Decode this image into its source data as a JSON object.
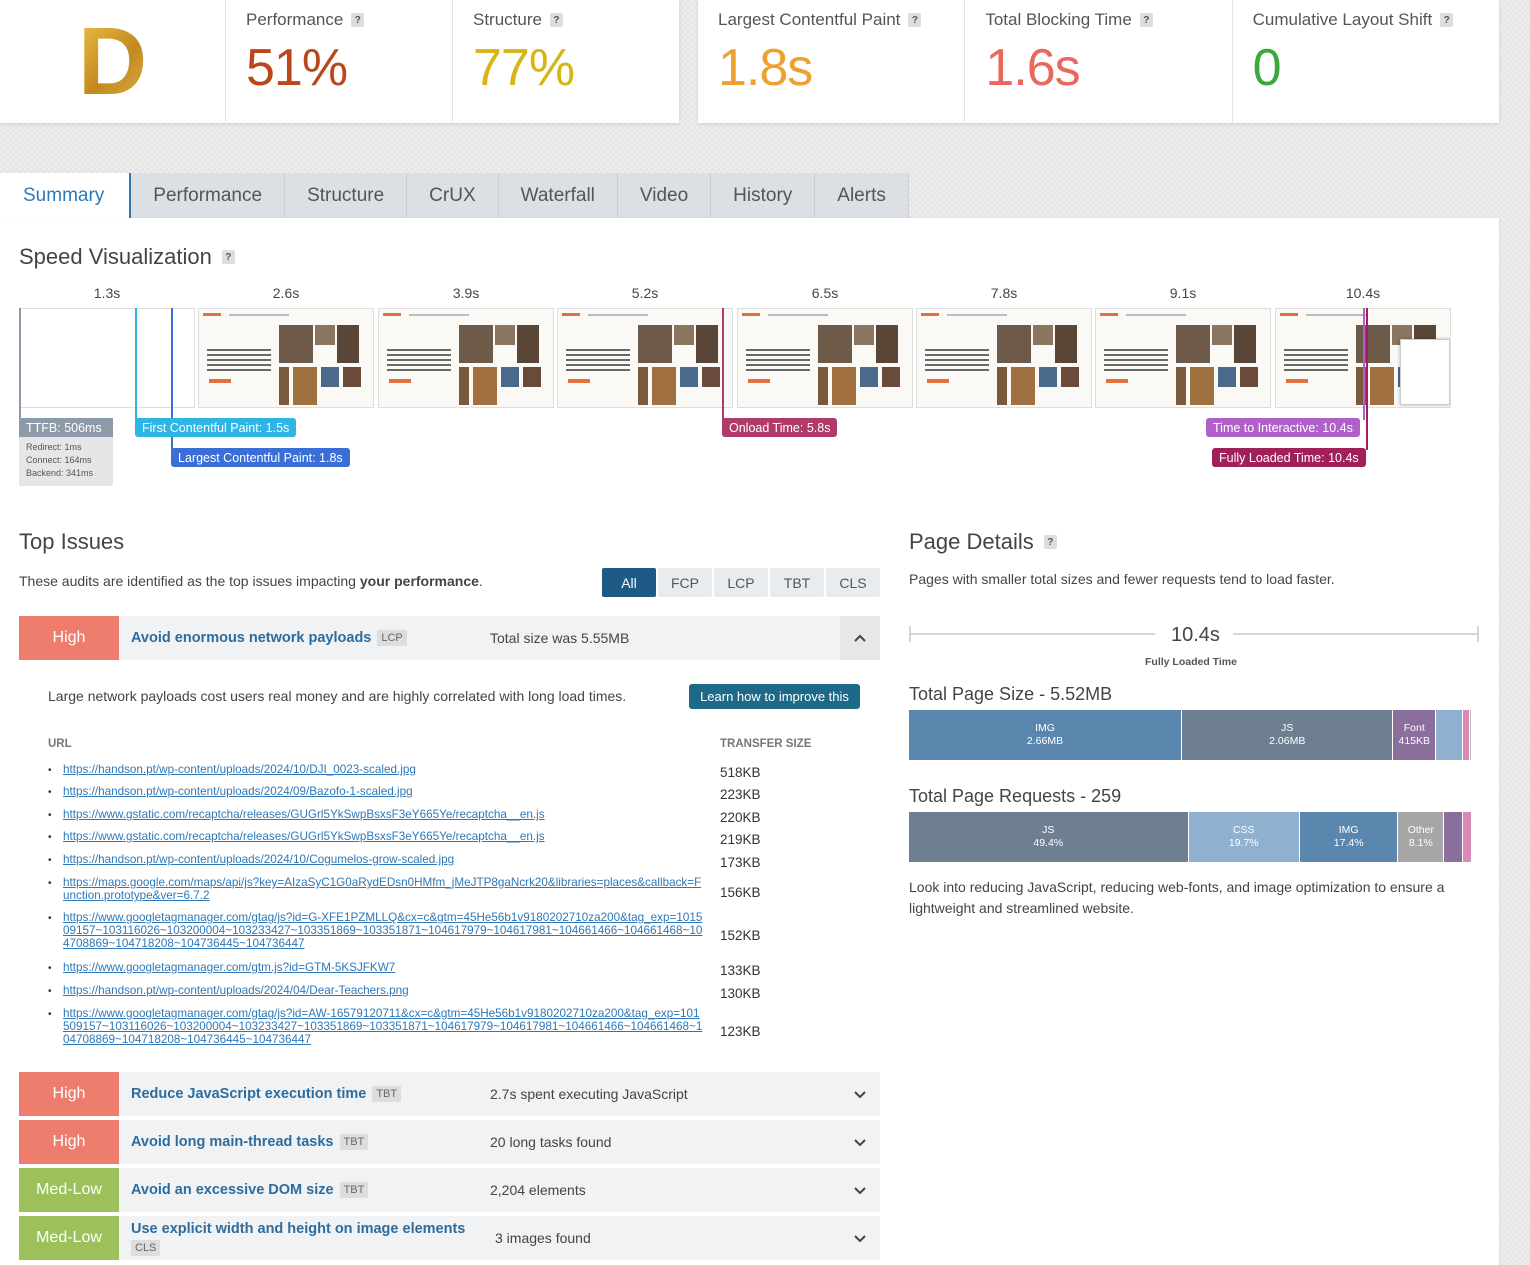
{
  "grade": "D",
  "scores": [
    {
      "label": "Performance",
      "value": "51%",
      "color": "#b8471b"
    },
    {
      "label": "Structure",
      "value": "77%",
      "color": "#d7b514"
    }
  ],
  "web_vitals": [
    {
      "label": "Largest Contentful Paint",
      "value": "1.8s",
      "color": "#f0a030"
    },
    {
      "label": "Total Blocking Time",
      "value": "1.6s",
      "color": "#e8695b"
    },
    {
      "label": "Cumulative Layout Shift",
      "value": "0",
      "color": "#3aa83a"
    }
  ],
  "help_glyph": "?",
  "tabs": [
    "Summary",
    "Performance",
    "Structure",
    "CrUX",
    "Waterfall",
    "Video",
    "History",
    "Alerts"
  ],
  "speed": {
    "title": "Speed Visualization",
    "frame_times": [
      "1.3s",
      "2.6s",
      "3.9s",
      "5.2s",
      "6.5s",
      "7.8s",
      "9.1s",
      "10.4s"
    ],
    "ttfb": {
      "label": "TTFB: 506ms",
      "redirect": "Redirect: 1ms",
      "connect": "Connect: 164ms",
      "backend": "Backend: 341ms"
    },
    "markers": {
      "fcp": "First Contentful Paint: 1.5s",
      "lcp": "Largest Contentful Paint: 1.8s",
      "onload": "Onload Time: 5.8s",
      "tti": "Time to Interactive: 10.4s",
      "fully": "Fully Loaded Time: 10.4s"
    }
  },
  "top_issues": {
    "title": "Top Issues",
    "desc_prefix": "These audits are identified as the top issues impacting ",
    "desc_bold": "your performance",
    "desc_suffix": ".",
    "filters": [
      "All",
      "FCP",
      "LCP",
      "TBT",
      "CLS"
    ],
    "expanded": {
      "severity": "High",
      "title": "Avoid enormous network payloads",
      "tag": "LCP",
      "info": "Total size was 5.55MB",
      "description": "Large network payloads cost users real money and are highly correlated with long load times.",
      "learn": "Learn how to improve this",
      "col_url": "URL",
      "col_size": "TRANSFER SIZE",
      "rows": [
        {
          "url": "https://handson.pt/wp-content/uploads/2024/10/DJI_0023-scaled.jpg",
          "size": "518KB"
        },
        {
          "url": "https://handson.pt/wp-content/uploads/2024/09/Bazofo-1-scaled.jpg",
          "size": "223KB"
        },
        {
          "url": "https://www.gstatic.com/recaptcha/releases/GUGrl5YkSwpBsxsF3eY665Ye/recaptcha__en.js",
          "size": "220KB"
        },
        {
          "url": "https://www.gstatic.com/recaptcha/releases/GUGrl5YkSwpBsxsF3eY665Ye/recaptcha__en.js",
          "size": "219KB"
        },
        {
          "url": "https://handson.pt/wp-content/uploads/2024/10/Cogumelos-grow-scaled.jpg",
          "size": "173KB"
        },
        {
          "url": "https://maps.google.com/maps/api/js?key=AIzaSyC1G0aRydEDsn0HMfm_jMeJTP8gaNcrk20&libraries=places&callback=Function.prototype&ver=6.7.2",
          "size": "156KB"
        },
        {
          "url": "https://www.googletagmanager.com/gtag/js?id=G-XFE1PZMLLQ&cx=c&gtm=45He56b1v9180202710za200&tag_exp=101509157~103116026~103200004~103233427~103351869~103351871~104617979~104617981~104661466~104661468~104708869~104718208~104736445~104736447",
          "size": "152KB"
        },
        {
          "url": "https://www.googletagmanager.com/gtm.js?id=GTM-5KSJFKW7",
          "size": "133KB"
        },
        {
          "url": "https://handson.pt/wp-content/uploads/2024/04/Dear-Teachers.png",
          "size": "130KB"
        },
        {
          "url": "https://www.googletagmanager.com/gtag/js?id=AW-16579120711&cx=c&gtm=45He56b1v9180202710za200&tag_exp=101509157~103116026~103200004~103233427~103351869~103351871~104617979~104617981~104661466~104661468~104708869~104718208~104736445~104736447",
          "size": "123KB"
        }
      ]
    },
    "others": [
      {
        "severity": "High",
        "title": "Reduce JavaScript execution time",
        "tag": "TBT",
        "info": "2.7s spent executing JavaScript"
      },
      {
        "severity": "High",
        "title": "Avoid long main-thread tasks",
        "tag": "TBT",
        "info": "20 long tasks found"
      },
      {
        "severity": "Med-Low",
        "title": "Avoid an excessive DOM size",
        "tag": "TBT",
        "info": "2,204 elements"
      },
      {
        "severity": "Med-Low",
        "title": "Use explicit width and height on image elements",
        "tag": "CLS",
        "info": "3 images found"
      }
    ]
  },
  "page_details": {
    "title": "Page Details",
    "desc": "Pages with smaller total sizes and fewer requests tend to load faster.",
    "fully_loaded_value": "10.4s",
    "fully_loaded_label": "Fully Loaded Time",
    "size_title": "Total Page Size - 5.52MB",
    "size_segments": [
      {
        "label": "IMG",
        "value": "2.66MB",
        "share": 2.66,
        "color": "#5b86ad"
      },
      {
        "label": "JS",
        "value": "2.06MB",
        "share": 2.06,
        "color": "#6f7f92"
      },
      {
        "label": "Font",
        "value": "415KB",
        "share": 0.415,
        "color": "#8a6e9c"
      },
      {
        "label": "",
        "value": "",
        "share": 0.26,
        "color": "#8fb0cf"
      },
      {
        "label": "",
        "value": "",
        "share": 0.07,
        "color": "#d88ab4"
      },
      {
        "label": "",
        "value": "",
        "share": 0.02,
        "color": "#b9b9b9"
      }
    ],
    "requests_title": "Total Page Requests - 259",
    "request_segments": [
      {
        "label": "JS",
        "value": "49.4%",
        "share": 49.4,
        "color": "#6f7f92"
      },
      {
        "label": "CSS",
        "value": "19.7%",
        "share": 19.7,
        "color": "#8fb0cf"
      },
      {
        "label": "IMG",
        "value": "17.4%",
        "share": 17.4,
        "color": "#5b86ad"
      },
      {
        "label": "Other",
        "value": "8.1%",
        "share": 8.1,
        "color": "#a6a6a6"
      },
      {
        "label": "",
        "value": "",
        "share": 3.3,
        "color": "#8a6e9c"
      },
      {
        "label": "",
        "value": "",
        "share": 1.6,
        "color": "#d88ab4"
      }
    ],
    "footer": "Look into reducing JavaScript, reducing web-fonts, and image optimization to ensure a lightweight and streamlined website."
  }
}
